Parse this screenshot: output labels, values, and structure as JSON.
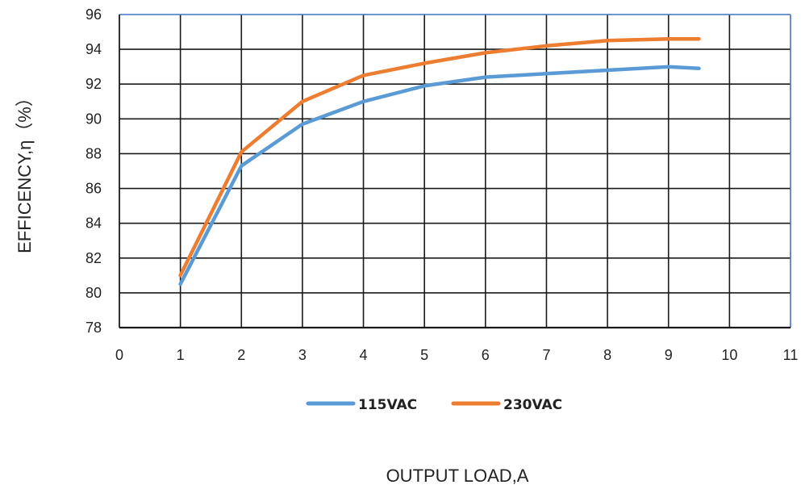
{
  "chart_data": {
    "type": "line",
    "title": "",
    "xlabel": "OUTPUT LOAD,A",
    "ylabel": "EFFICENCY,η（%）",
    "xlim": [
      0,
      11
    ],
    "ylim": [
      78,
      96
    ],
    "x_ticks": [
      "0",
      "1",
      "2",
      "3",
      "4",
      "5",
      "6",
      "7",
      "8",
      "9",
      "10",
      "11"
    ],
    "y_ticks": [
      "78",
      "80",
      "82",
      "84",
      "86",
      "88",
      "90",
      "92",
      "94",
      "96"
    ],
    "grid": true,
    "legend_position": "bottom",
    "series": [
      {
        "name": "115VAC",
        "color": "#5b9bd5",
        "x": [
          1,
          2,
          3,
          4,
          5,
          6,
          7,
          8,
          9,
          9.5
        ],
        "values": [
          80.5,
          87.3,
          89.7,
          91.0,
          91.9,
          92.4,
          92.6,
          92.8,
          93.0,
          92.9
        ]
      },
      {
        "name": "230VAC",
        "color": "#ed7d31",
        "x": [
          1,
          2,
          3,
          4,
          5,
          6,
          7,
          8,
          9,
          9.5
        ],
        "values": [
          81.0,
          88.1,
          91.0,
          92.5,
          93.2,
          93.8,
          94.2,
          94.5,
          94.6,
          94.6
        ]
      }
    ]
  }
}
